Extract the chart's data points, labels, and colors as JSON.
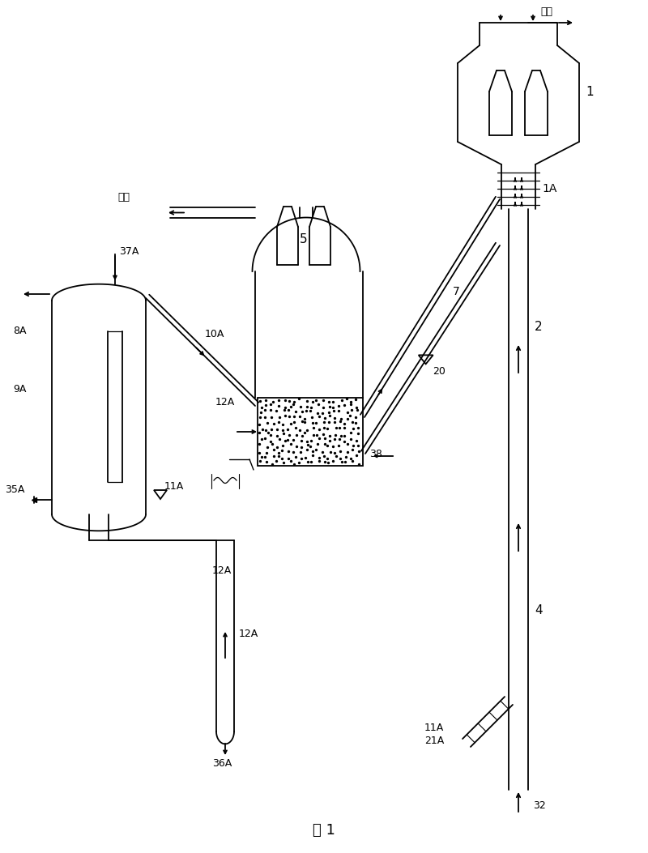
{
  "bg_color": "#ffffff",
  "line_color": "#000000",
  "fig_caption": "图 1",
  "product_label": "产品",
  "flue_gas_label": "烟气",
  "labels": {
    "1": "1",
    "1A": "1A",
    "2": "2",
    "4": "4",
    "5": "5",
    "7": "7",
    "8A": "8A",
    "9A": "9A",
    "10A": "10A",
    "11A_r": "11A",
    "11A_l": "11A",
    "12A_a": "12A",
    "12A_b": "12A",
    "12A_c": "12A",
    "20": "20",
    "21A": "21A",
    "32": "32",
    "35A": "35A",
    "36A": "36A",
    "37A": "37A",
    "38": "38"
  },
  "figsize": [
    8.0,
    10.53
  ],
  "dpi": 100
}
